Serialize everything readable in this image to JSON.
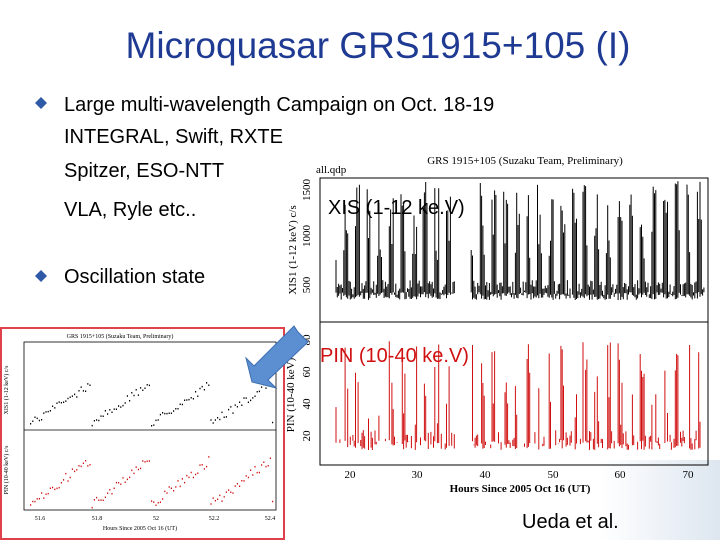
{
  "slide": {
    "title": "Microquasar GRS1915+105 (I)",
    "bullets": [
      {
        "lines": [
          "Large multi-wavelength Campaign on Oct. 18-19",
          "INTEGRAL, Swift, RXTE",
          "Spitzer, ESO-NTT",
          "VLA, Ryle etc.."
        ]
      },
      {
        "lines": [
          "Oscillation state"
        ]
      }
    ],
    "credit": "Ueda et al."
  },
  "main_plot": {
    "file": "all.qdp",
    "title": "GRS 1915+105 (Suzaku Team, Preliminary)",
    "top_label": "XIS (1-12 ke.V)",
    "top_ylabel": "XIS1 (1-12 keV) c/s",
    "top_yticks": [
      "500",
      "1000",
      "1500"
    ],
    "bottom_label": "PIN (10-40 ke.V)",
    "bottom_ylabel": "PIN (10-40 keV)",
    "bottom_yticks": [
      "20",
      "40",
      "60",
      "80"
    ],
    "xticks": [
      "20",
      "30",
      "40",
      "50",
      "60",
      "70"
    ],
    "xlabel": "Hours Since 2005 Oct 16 (UT)"
  },
  "inset_plot": {
    "title": "GRS 1915+105 (Suzaku Team, Preliminary)",
    "top_ylabel": "XIS1 (1-12 keV) c/s",
    "bottom_ylabel": "PIN (10-40 keV) c/s",
    "xticks": [
      "51.6",
      "51.8",
      "52",
      "52.2",
      "52.4"
    ],
    "xlabel": "Hours Since 2005 Oct 16 (UT)"
  }
}
